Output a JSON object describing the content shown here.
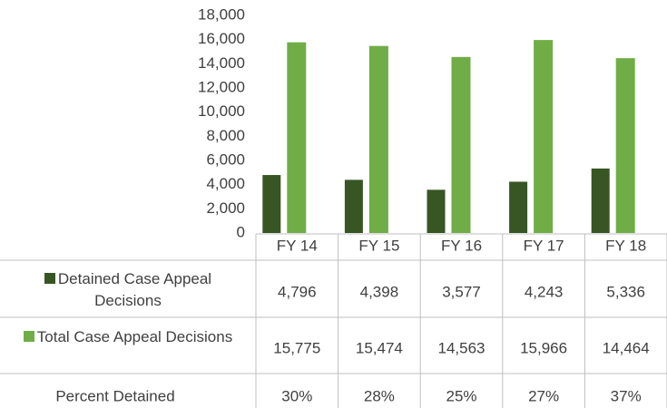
{
  "chart_data": {
    "type": "bar",
    "categories": [
      "FY 14",
      "FY 15",
      "FY 16",
      "FY 17",
      "FY 18"
    ],
    "series": [
      {
        "name": "Detained Case Appeal Decisions",
        "color": "#375623",
        "values": [
          4796,
          4398,
          3577,
          4243,
          5336
        ],
        "value_labels": [
          "4,796",
          "4,398",
          "3,577",
          "4,243",
          "5,336"
        ]
      },
      {
        "name": "Total Case Appeal Decisions",
        "color": "#70ad47",
        "values": [
          15775,
          15474,
          14563,
          15966,
          14464
        ],
        "value_labels": [
          "15,775",
          "15,474",
          "14,563",
          "15,966",
          "14,464"
        ]
      }
    ],
    "percent_row": {
      "name": "Percent Detained",
      "values": [
        30,
        28,
        25,
        27,
        37
      ],
      "value_labels": [
        "30%",
        "28%",
        "25%",
        "27%",
        "37%"
      ]
    },
    "ylim": [
      0,
      18000
    ],
    "yticks": [
      0,
      {
        "value": 2000,
        "label": "2,000"
      },
      {
        "value": 4000,
        "label": "4,000"
      },
      {
        "value": 6000,
        "label": "6,000"
      },
      {
        "value": 8000,
        "label": "8,000"
      },
      {
        "value": 10000,
        "label": "10,000"
      },
      {
        "value": 12000,
        "label": "12,000"
      },
      {
        "value": 14000,
        "label": "14,000"
      },
      {
        "value": 16000,
        "label": "16,000"
      },
      {
        "value": 18000,
        "label": "18,000"
      }
    ],
    "grid": false
  }
}
